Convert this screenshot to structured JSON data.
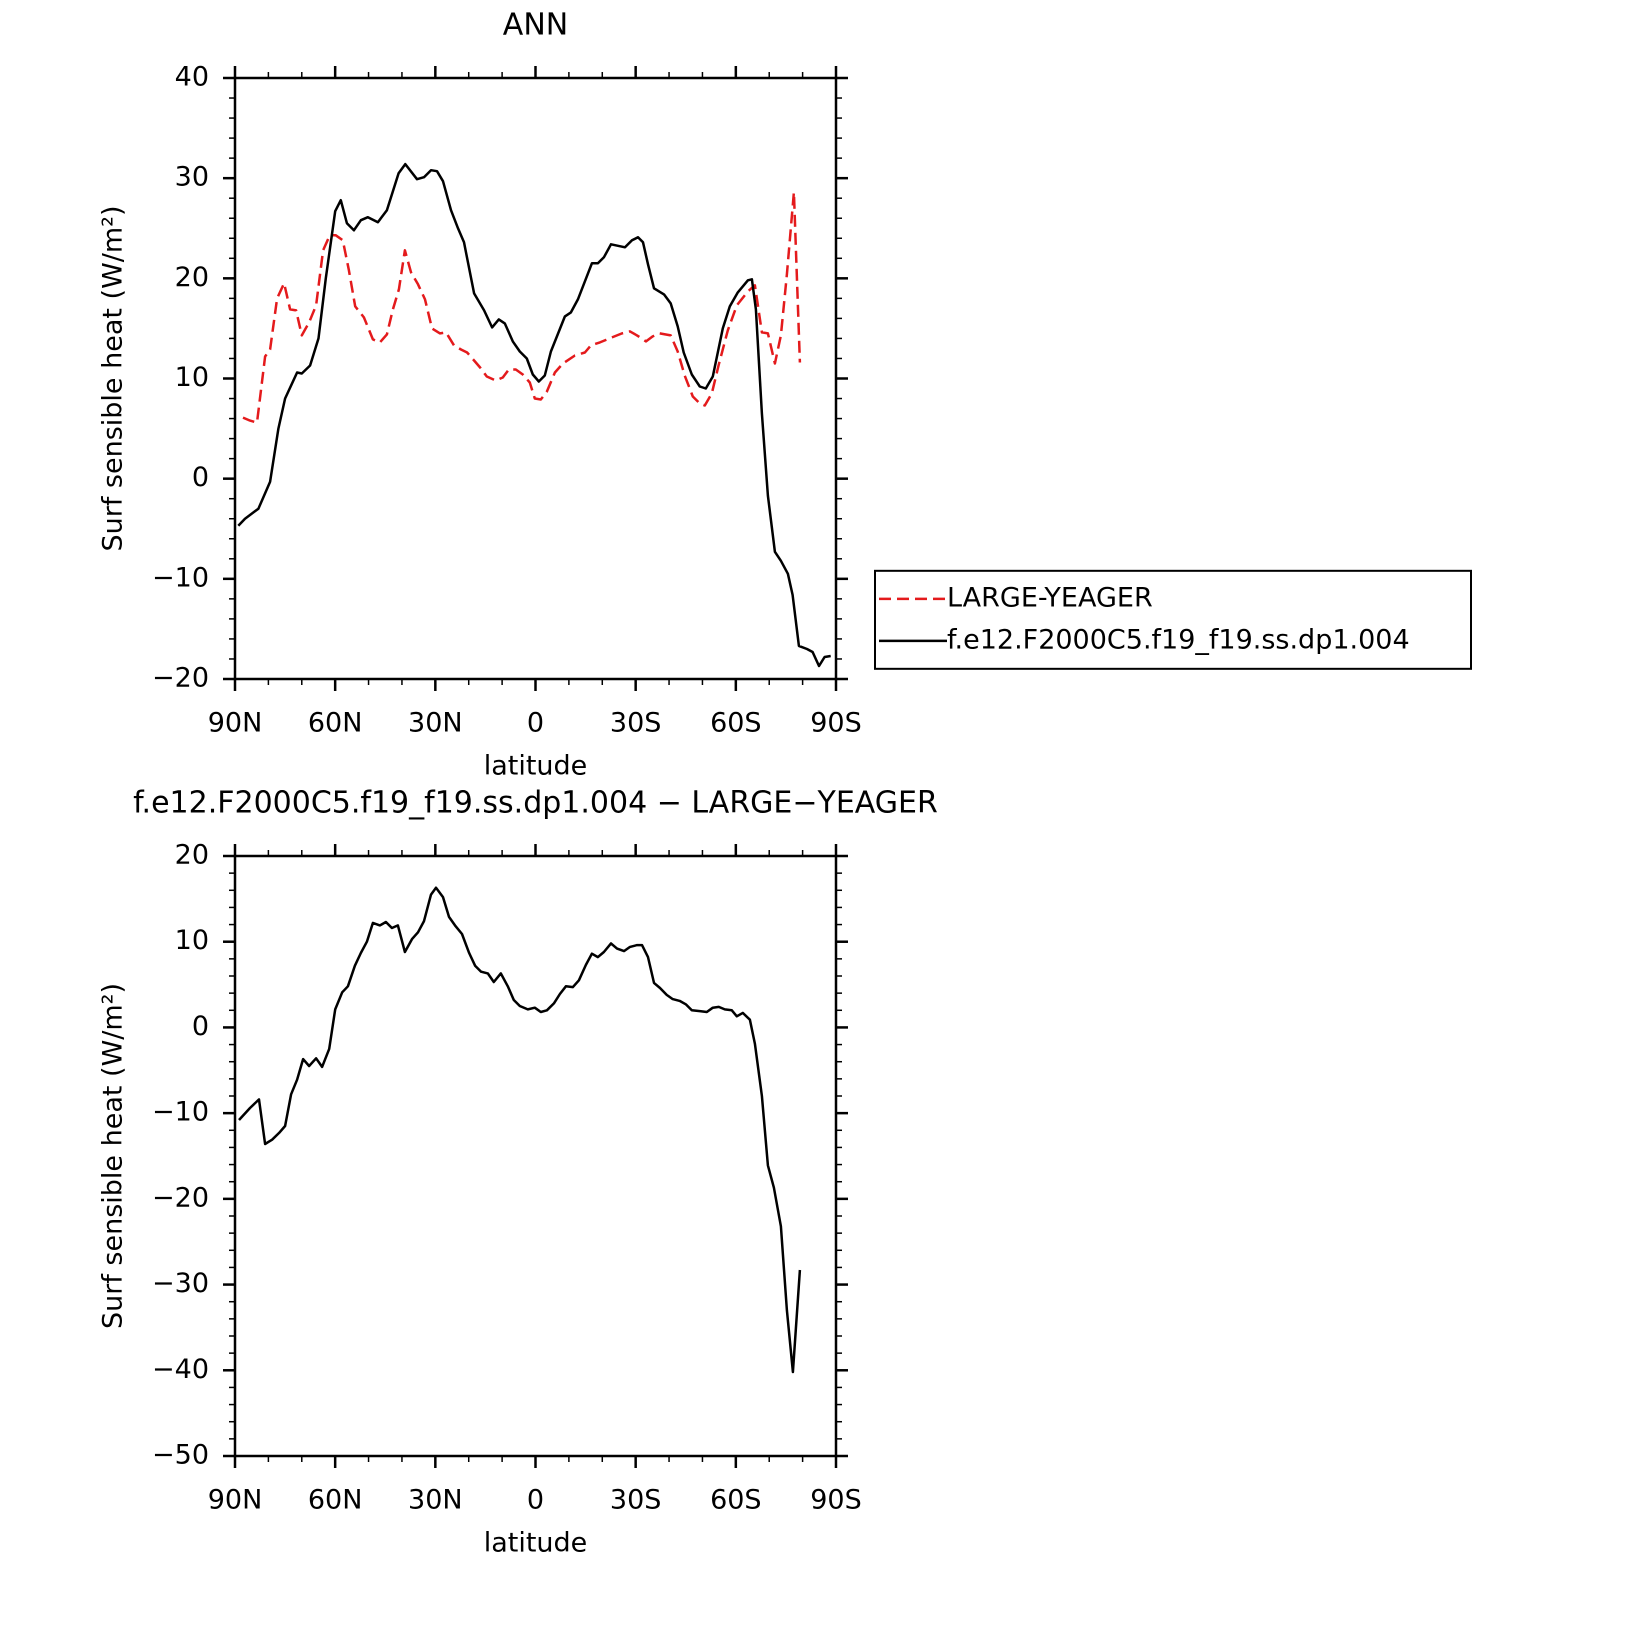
{
  "chart_data": [
    {
      "type": "line",
      "title": "ANN",
      "x_label": "latitude",
      "y_label": "Surf sensible heat (W/m²)",
      "xlim": [
        90,
        -90
      ],
      "ylim": [
        -20,
        40
      ],
      "xticks": [
        {
          "value": 90,
          "label": "90N"
        },
        {
          "value": 60,
          "label": "60N"
        },
        {
          "value": 30,
          "label": "30N"
        },
        0,
        {
          "value": -30,
          "label": "30S"
        },
        {
          "value": -60,
          "label": "60S"
        },
        {
          "value": -90,
          "label": "90S"
        }
      ],
      "yticks": [
        {
          "value": -20,
          "label": "−20"
        },
        {
          "value": -10,
          "label": "−10"
        },
        0,
        10,
        20,
        30,
        40
      ],
      "legend": "right",
      "series": [
        {
          "name": "LARGE-YEAGER",
          "color": "#e41a1c",
          "dash": true,
          "x": [
            87.6,
            85.5,
            83.4,
            81,
            79.5,
            77.4,
            75.3,
            73.5,
            71.7,
            70,
            67.8,
            65.7,
            63.6,
            61.6,
            59.8,
            57.7,
            55.9,
            54,
            51.4,
            48.7,
            46.6,
            44.5,
            42.7,
            40.9,
            39.1,
            37.3,
            35.2,
            33.1,
            31,
            28.6,
            26.8,
            24.4,
            22.3,
            20.5,
            18.4,
            16.6,
            14.6,
            11.9,
            9.8,
            8,
            5.9,
            3.8,
            1.7,
            0.2,
            -1.6,
            -3.4,
            -5.8,
            -8.2,
            -11.8,
            -14.8,
            -16.6,
            -19.3,
            -22.9,
            -25.9,
            -28.3,
            -30.4,
            -33.1,
            -35.1,
            -37.2,
            -40.5,
            -42.6,
            -44.7,
            -47.1,
            -49.2,
            -50.7,
            -52.8,
            -54.9,
            -57.6,
            -60.3,
            -63.6,
            -65.7,
            -67.8,
            -69.6,
            -71.7,
            -73.5,
            -75.3,
            -77.4,
            -79.2
          ],
          "values": [
            6.1,
            5.8,
            5.6,
            12.2,
            12.9,
            18,
            19.5,
            16.9,
            16.8,
            14.3,
            15.6,
            17.3,
            22.8,
            24.3,
            24.3,
            23.8,
            20.8,
            17.2,
            16.1,
            13.9,
            13.6,
            14.4,
            16.9,
            18.9,
            22.8,
            20.6,
            19.4,
            17.9,
            15,
            14.5,
            14.6,
            13.3,
            12.9,
            12.6,
            11.8,
            11.1,
            10.2,
            9.8,
            10.1,
            10.9,
            10.9,
            10.4,
            9.6,
            8,
            7.9,
            8.7,
            10.6,
            11.5,
            12.3,
            12.6,
            13.3,
            13.6,
            14.1,
            14.5,
            14.7,
            14.3,
            13.7,
            14.2,
            14.5,
            14.3,
            12.7,
            10.3,
            8.2,
            7.5,
            7.3,
            8.5,
            11.4,
            14.8,
            17.3,
            18.7,
            19.3,
            14.6,
            14.5,
            11.5,
            14.3,
            20.4,
            28.6,
            11.6
          ]
        },
        {
          "name": "f.e12.F2000C5.f19_f19.ss.dp1.004",
          "color": "#000000",
          "dash": false,
          "x": [
            89,
            87,
            83,
            79.5,
            77,
            75,
            71.4,
            70,
            67.5,
            65,
            62.8,
            60,
            58.3,
            56.5,
            54.4,
            52.3,
            50.2,
            47.2,
            44.5,
            41,
            39,
            35.5,
            33.4,
            31.3,
            29.5,
            27.7,
            25.3,
            23.2,
            21.4,
            18.4,
            15.4,
            13,
            11,
            9.2,
            6.8,
            4.7,
            2.6,
            0.8,
            -1,
            -2.8,
            -4.6,
            -8.8,
            -10.6,
            -12.7,
            -16.9,
            -18.7,
            -20.5,
            -22.6,
            -26.8,
            -28.9,
            -30.7,
            -32.2,
            -33.7,
            -35.5,
            -38.5,
            -40.5,
            -42.6,
            -44.4,
            -46.8,
            -49.2,
            -51,
            -53.1,
            -56.1,
            -58.2,
            -60.6,
            -63.6,
            -64.8,
            -66,
            -67.8,
            -69.6,
            -71.7,
            -73.5,
            -75.6,
            -77,
            -78.9,
            -81.3,
            -83,
            -84.9,
            -86.6,
            -88.4
          ],
          "values": [
            -4.7,
            -4,
            -3,
            -0.3,
            5,
            8,
            10.6,
            10.5,
            11.3,
            14,
            20,
            26.7,
            27.8,
            25.5,
            24.8,
            25.8,
            26.1,
            25.6,
            26.8,
            30.5,
            31.4,
            29.9,
            30.1,
            30.8,
            30.7,
            29.7,
            26.8,
            25,
            23.6,
            18.5,
            16.8,
            15.1,
            15.9,
            15.5,
            13.7,
            12.7,
            12,
            10.4,
            9.7,
            10.3,
            12.7,
            16.2,
            16.6,
            17.9,
            21.5,
            21.5,
            22.1,
            23.4,
            23.1,
            23.8,
            24.1,
            23.6,
            21.4,
            19,
            18.4,
            17.5,
            15.2,
            12.6,
            10.4,
            9.2,
            9,
            10.2,
            15,
            17.2,
            18.6,
            19.8,
            19.9,
            16.9,
            6.5,
            -1.7,
            -7.3,
            -8.2,
            -9.5,
            -11.6,
            -16.7,
            -17,
            -17.3,
            -18.7,
            -17.8,
            -17.7
          ]
        }
      ]
    },
    {
      "type": "line",
      "title": "f.e12.F2000C5.f19_f19.ss.dp1.004 − LARGE−YEAGER",
      "x_label": "latitude",
      "y_label": "Surf sensible heat (W/m²)",
      "xlim": [
        90,
        -90
      ],
      "ylim": [
        -50,
        20
      ],
      "xticks": [
        {
          "value": 90,
          "label": "90N"
        },
        {
          "value": 60,
          "label": "60N"
        },
        {
          "value": 30,
          "label": "30N"
        },
        0,
        {
          "value": -30,
          "label": "30S"
        },
        {
          "value": -60,
          "label": "60S"
        },
        {
          "value": -90,
          "label": "90S"
        }
      ],
      "yticks": [
        {
          "value": -50,
          "label": "−50"
        },
        {
          "value": -40,
          "label": "−40"
        },
        {
          "value": -30,
          "label": "−30"
        },
        {
          "value": -20,
          "label": "−20"
        },
        {
          "value": -10,
          "label": "−10"
        },
        0,
        10,
        20
      ],
      "series": [
        {
          "color": "#000000",
          "dash": false,
          "x": [
            88.8,
            85.5,
            82.8,
            81,
            78.9,
            76.8,
            75,
            73.2,
            71.4,
            69.6,
            67.8,
            65.7,
            63.9,
            61.8,
            60,
            57.9,
            56.2,
            54.1,
            52.3,
            50.5,
            48.7,
            46.6,
            44.8,
            43,
            41.2,
            39.1,
            37,
            35.2,
            33.4,
            31.3,
            29.8,
            27.7,
            25.9,
            24.1,
            22,
            19.9,
            18.1,
            16.3,
            14.3,
            12.5,
            10.4,
            8.3,
            6.5,
            4.7,
            2.3,
            0.2,
            -1.6,
            -3.4,
            -5.5,
            -7.3,
            -9.1,
            -11.2,
            -13,
            -15.1,
            -16.9,
            -18.7,
            -20.5,
            -22.6,
            -24.4,
            -26.5,
            -28.3,
            -30.4,
            -31.9,
            -33.7,
            -35.5,
            -37.3,
            -39.3,
            -41.1,
            -43.2,
            -45,
            -46.8,
            -49.2,
            -51.3,
            -53.1,
            -54.9,
            -56.7,
            -58.8,
            -60.3,
            -62.1,
            -64.2,
            -65.7,
            -67.8,
            -69.6,
            -71.4,
            -73.5,
            -75.3,
            -77.1,
            -79.2
          ],
          "values": [
            -10.8,
            -9.4,
            -8.4,
            -13.6,
            -13.1,
            -12.3,
            -11.5,
            -7.8,
            -6.1,
            -3.7,
            -4.5,
            -3.6,
            -4.6,
            -2.5,
            2.1,
            4.1,
            4.8,
            7.2,
            8.7,
            10,
            12.2,
            11.9,
            12.3,
            11.6,
            11.9,
            8.8,
            10.3,
            11.1,
            12.4,
            15.5,
            16.3,
            15.2,
            12.9,
            11.9,
            10.9,
            8.7,
            7.2,
            6.5,
            6.3,
            5.3,
            6.3,
            4.8,
            3.2,
            2.5,
            2.1,
            2.3,
            1.8,
            2,
            2.8,
            3.9,
            4.8,
            4.7,
            5.5,
            7.3,
            8.6,
            8.2,
            8.8,
            9.8,
            9.2,
            8.9,
            9.4,
            9.6,
            9.6,
            8.2,
            5.2,
            4.6,
            3.8,
            3.3,
            3.1,
            2.7,
            2,
            1.9,
            1.8,
            2.3,
            2.4,
            2.1,
            2,
            1.3,
            1.7,
            0.9,
            -1.9,
            -8,
            -16.1,
            -18.7,
            -23.2,
            -33,
            -40.2,
            -28.3
          ]
        }
      ]
    }
  ]
}
